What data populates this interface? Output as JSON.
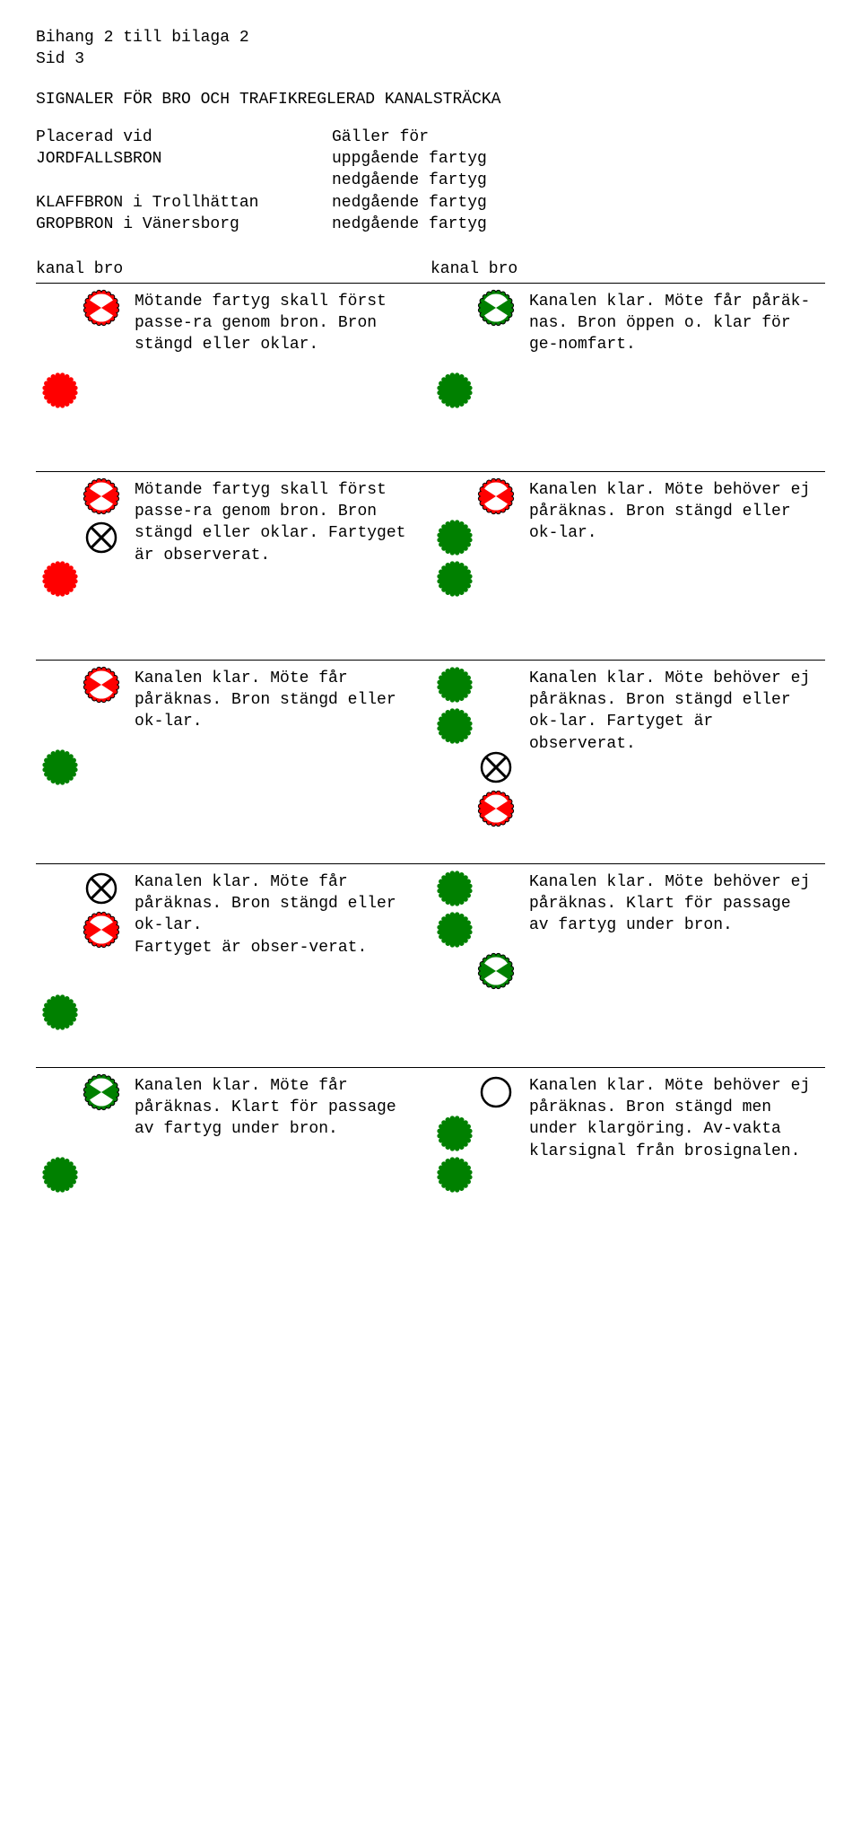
{
  "colors": {
    "red": "#ff0000",
    "green": "#008000",
    "white": "#ffffff",
    "black": "#000000",
    "bg": "#ffffff"
  },
  "header": {
    "line1": "Bihang 2 till bilaga 2",
    "line2": "Sid 3",
    "title": "SIGNALER FÖR BRO OCH TRAFIKREGLERAD KANALSTRÄCKA",
    "col_left_header": "Placerad vid",
    "col_right_header": "Gäller för",
    "rows": [
      {
        "left": "JORDFALLSBRON",
        "right": "uppgående fartyg"
      },
      {
        "left": "",
        "right": "nedgående fartyg"
      },
      {
        "left": "KLAFFBRON i Trollhättan",
        "right": "nedgående fartyg"
      },
      {
        "left": "GROPBRON i Vänersborg",
        "right": "nedgående fartyg"
      }
    ]
  },
  "column_labels": {
    "left": "kanal bro",
    "right": "kanal bro"
  },
  "signals": [
    {
      "left": {
        "lights": [
          [
            "empty",
            "red-bowtie"
          ],
          [
            "empty",
            "empty"
          ],
          [
            "red-solid",
            "empty"
          ]
        ],
        "text": "Mötande fartyg skall först passe-ra genom bron. Bron stängd eller oklar."
      },
      "right": {
        "lights": [
          [
            "empty",
            "green-bowtie"
          ],
          [
            "empty",
            "empty"
          ],
          [
            "green-solid",
            "empty"
          ]
        ],
        "text": "Kanalen klar. Möte får påräk-nas. Bron öppen o. klar för ge-nomfart."
      }
    },
    {
      "left": {
        "lights": [
          [
            "empty",
            "red-bowtie"
          ],
          [
            "empty",
            "white-cross"
          ],
          [
            "red-solid",
            "empty"
          ]
        ],
        "text": "Mötande fartyg skall först passe-ra genom bron. Bron stängd eller oklar. Fartyget är observerat."
      },
      "right": {
        "lights": [
          [
            "empty",
            "red-bowtie"
          ],
          [
            "green-solid",
            "empty"
          ],
          [
            "green-solid",
            "empty"
          ]
        ],
        "text": "Kanalen klar. Möte behöver ej påräknas. Bron stängd eller ok-lar."
      }
    },
    {
      "left": {
        "lights": [
          [
            "empty",
            "red-bowtie"
          ],
          [
            "empty",
            "empty"
          ],
          [
            "green-solid",
            "empty"
          ]
        ],
        "text": "Kanalen klar. Möte får påräknas. Bron stängd eller ok-lar."
      },
      "right": {
        "lights": [
          [
            "green-solid",
            "empty"
          ],
          [
            "green-solid",
            "empty"
          ],
          [
            "empty",
            "white-cross"
          ],
          [
            "empty",
            "red-bowtie"
          ]
        ],
        "text": "Kanalen klar. Möte behöver ej påräknas. Bron stängd eller ok-lar. Fartyget är observerat."
      }
    },
    {
      "left": {
        "lights": [
          [
            "empty",
            "white-cross"
          ],
          [
            "empty",
            "red-bowtie"
          ],
          [
            "empty",
            "empty"
          ],
          [
            "green-solid",
            "empty"
          ]
        ],
        "text": "Kanalen klar. Möte får påräknas. Bron stängd eller ok-lar.\nFartyget är obser-verat."
      },
      "right": {
        "lights": [
          [
            "green-solid",
            "empty"
          ],
          [
            "green-solid",
            "empty"
          ],
          [
            "empty",
            "green-bowtie"
          ]
        ],
        "text": "Kanalen klar. Möte behöver ej påräknas. Klart för passage av fartyg under bron."
      }
    },
    {
      "left": {
        "lights": [
          [
            "empty",
            "green-bowtie"
          ],
          [
            "empty",
            "empty"
          ],
          [
            "green-solid",
            "empty"
          ]
        ],
        "text": "Kanalen klar. Möte får påräknas. Klart för passage av fartyg under bron."
      },
      "right": {
        "lights": [
          [
            "empty",
            "white-ring"
          ],
          [
            "green-solid",
            "empty"
          ],
          [
            "green-solid",
            "empty"
          ]
        ],
        "text": "Kanalen klar. Möte behöver ej påräknas. Bron stängd men under klargöring. Av-vakta klarsignal från brosignalen."
      }
    }
  ],
  "light_defs": {
    "scallop_count": 20,
    "radius": 18,
    "scallop_r": 3
  }
}
